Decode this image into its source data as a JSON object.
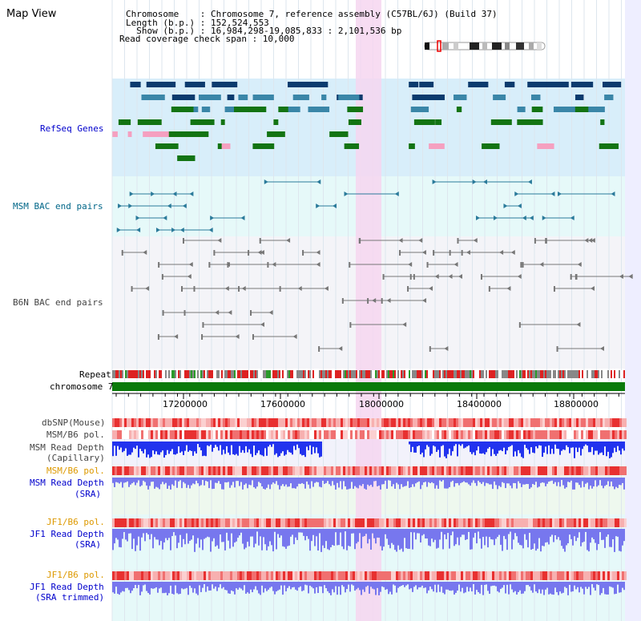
{
  "page": {
    "title": "Map View"
  },
  "info": {
    "lines": [
      "Chromosome    : Chromosome 7, reference assembly (C57BL/6J) (Build 37)",
      "Length (b.p.) : 152,524,553",
      "  Show (b.p.) : 16,984,298-19,085,833 : 2,101,536 bp",
      "Read coverage check span : 10,000"
    ]
  },
  "tracks": {
    "refseq": "RefSeq Genes",
    "msm_bac": "MSM BAC end pairs",
    "b6n_bac": "B6N BAC end pairs",
    "repeat": "Repeat",
    "chromosome": "chromosome 7",
    "dbsnp": "dbSNP(Mouse)",
    "msm_b6_pol_1": "MSM/B6 pol.",
    "msm_read_depth_cap_1": "MSM Read Depth",
    "msm_read_depth_cap_2": "(Capillary)",
    "msm_b6_pol_2": "MSM/B6 pol.",
    "msm_read_depth_sra_1": "MSM Read Depth",
    "msm_read_depth_sra_2": "(SRA)",
    "jf1_b6_pol_1": "JF1/B6 pol.",
    "jf1_read_depth_sra_1": "JF1 Read Depth",
    "jf1_read_depth_sra_2": "(SRA)",
    "jf1_b6_pol_2": "JF1/B6 pol.",
    "jf1_read_depth_trim_1": "JF1 Read Depth",
    "jf1_read_depth_trim_2": "(SRA trimmed)"
  },
  "axis": {
    "ticks": [
      "17200000",
      "17600000",
      "18000000",
      "18400000",
      "18800000"
    ]
  },
  "colors": {
    "refseq_bg": "#d8eefa",
    "msm_bac_bg": "#e6f9f9",
    "b6n_bg": "#f4f4f8",
    "highlight": "#f6d6f0",
    "label_blue": "#0000cc",
    "label_teal": "#006688",
    "label_gray": "#444444",
    "label_orange": "#dd9900",
    "gene_dark": "#0b3b6e",
    "gene_mid": "#3a86a8",
    "gene_green": "#137413",
    "gene_pink": "#f5a0c0",
    "bac_teal": "#2a7a9a",
    "bac_gray": "#777777",
    "chrom_green": "#0a7a0a",
    "depth_blue": "#2233ee",
    "depth_light": "#7777ee"
  }
}
